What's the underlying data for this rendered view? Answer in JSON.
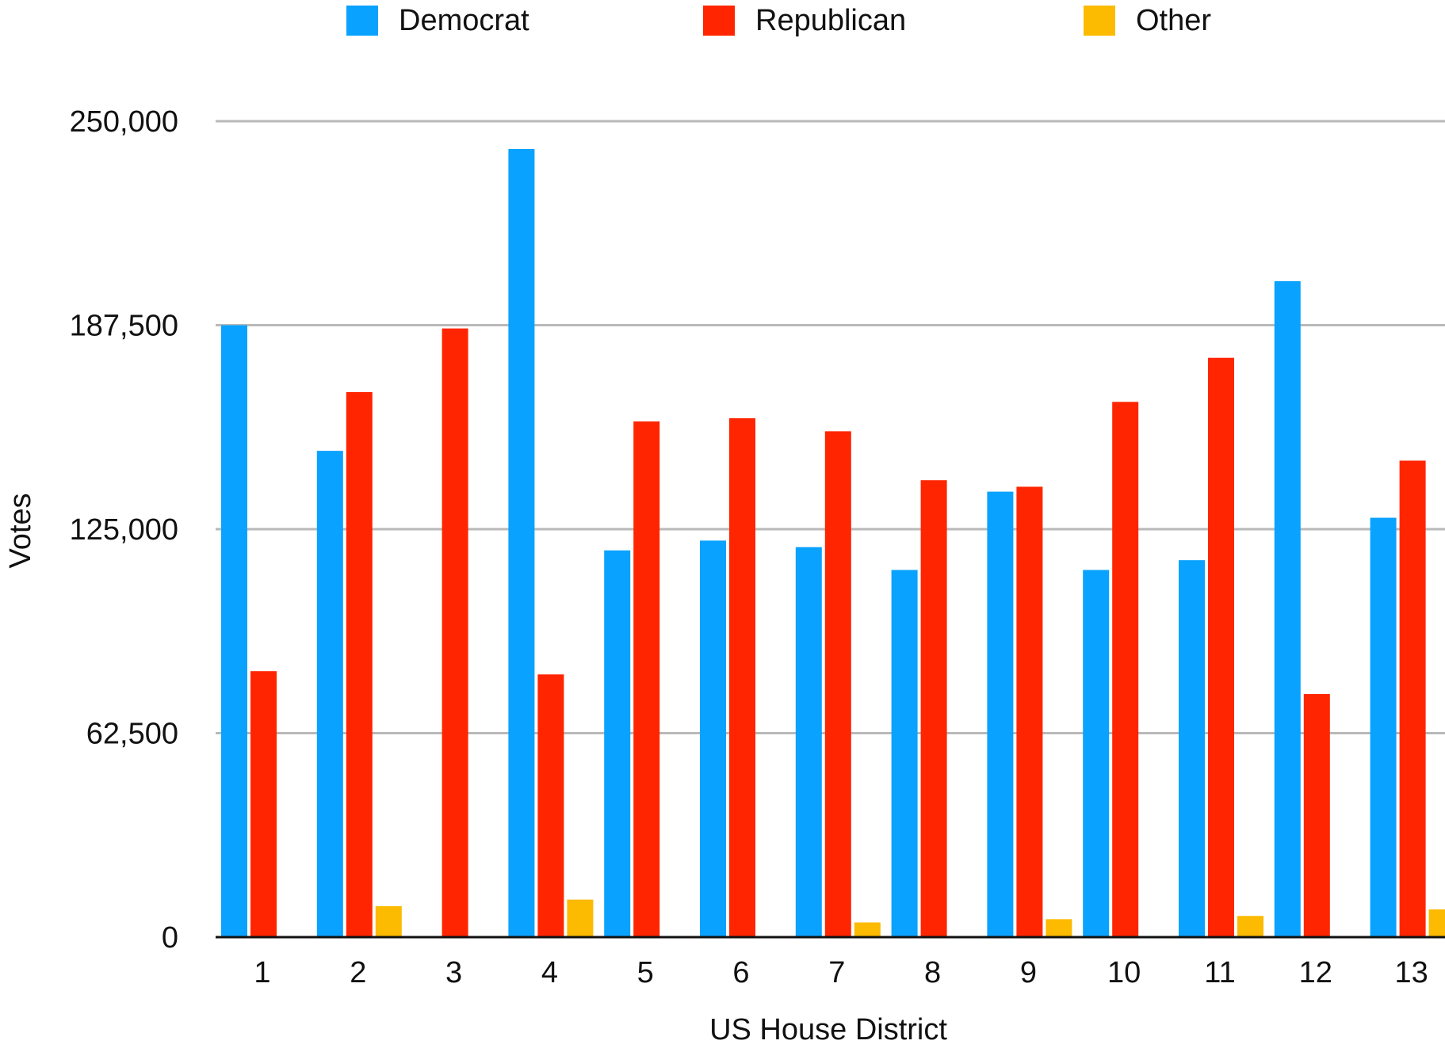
{
  "chart_data": {
    "type": "bar",
    "title": "",
    "xlabel": "US House District",
    "ylabel": "Votes",
    "categories": [
      "1",
      "2",
      "3",
      "4",
      "5",
      "6",
      "7",
      "8",
      "9",
      "10",
      "11",
      "12",
      "13"
    ],
    "series": [
      {
        "name": "Democrat",
        "color": "#0aa2ff",
        "values": [
          187500,
          149000,
          0,
          241500,
          118500,
          121500,
          119500,
          112500,
          136500,
          112500,
          115500,
          201000,
          128500
        ]
      },
      {
        "name": "Republican",
        "color": "#ff2500",
        "values": [
          81500,
          167000,
          186500,
          80500,
          158000,
          159000,
          155000,
          140000,
          138000,
          164000,
          177500,
          74500,
          146000
        ]
      },
      {
        "name": "Other",
        "color": "#fcba00",
        "values": [
          0,
          9500,
          0,
          11500,
          0,
          0,
          4500,
          0,
          5500,
          0,
          6500,
          0,
          8500
        ]
      }
    ],
    "ylim": [
      0,
      250000
    ],
    "yticks": [
      0,
      62500,
      125000,
      187500,
      250000
    ],
    "ytick_labels": [
      "0",
      "62,500",
      "125,000",
      "187,500",
      "250,000"
    ],
    "grid": true,
    "legend_position": "top-center"
  }
}
